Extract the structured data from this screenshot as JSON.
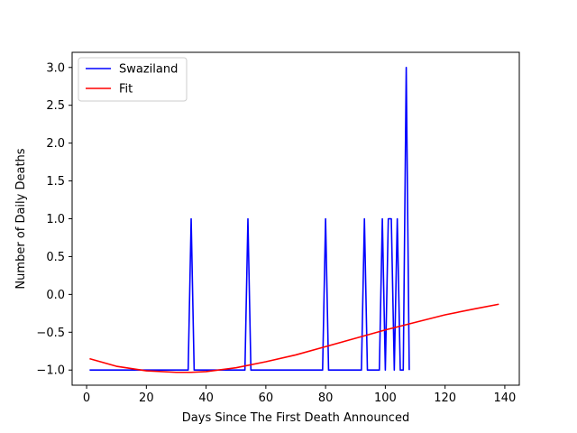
{
  "chart_data": {
    "type": "line",
    "title": "",
    "xlabel": "Days Since The First Death Announced",
    "ylabel": "Number of Daily Deaths",
    "xlim": [
      -4.85,
      144.85
    ],
    "ylim": [
      -1.2,
      3.2
    ],
    "xticks": [
      0,
      20,
      40,
      60,
      80,
      100,
      120,
      140
    ],
    "yticks": [
      -1.0,
      -0.5,
      0.0,
      0.5,
      1.0,
      1.5,
      2.0,
      2.5,
      3.0
    ],
    "xtick_labels": [
      "0",
      "20",
      "40",
      "60",
      "80",
      "100",
      "120",
      "140"
    ],
    "ytick_labels": [
      "−1.0",
      "−0.5",
      "0.0",
      "0.5",
      "1.0",
      "1.5",
      "2.0",
      "2.5",
      "3.0"
    ],
    "grid": false,
    "legend_position": "upper-left",
    "series": [
      {
        "name": "Swaziland",
        "color": "#0000ff",
        "x": [
          1,
          34,
          35,
          36,
          53,
          54,
          55,
          79,
          80,
          81,
          92,
          93,
          94,
          98,
          99,
          100,
          101,
          102,
          103,
          104,
          105,
          106,
          107,
          108
        ],
        "y": [
          -1,
          -1,
          1,
          -1,
          -1,
          1,
          -1,
          -1,
          1,
          -1,
          -1,
          1,
          -1,
          -1,
          1,
          -1,
          1,
          1,
          -1,
          1,
          -1,
          -1,
          3,
          -1
        ]
      },
      {
        "name": "Fit",
        "color": "#ff0000",
        "x": [
          1,
          10,
          20,
          30,
          35,
          40,
          50,
          60,
          70,
          80,
          90,
          100,
          110,
          120,
          130,
          138
        ],
        "y": [
          -0.85,
          -0.95,
          -1.01,
          -1.03,
          -1.03,
          -1.02,
          -0.97,
          -0.89,
          -0.8,
          -0.69,
          -0.58,
          -0.47,
          -0.37,
          -0.27,
          -0.19,
          -0.13
        ]
      }
    ]
  }
}
